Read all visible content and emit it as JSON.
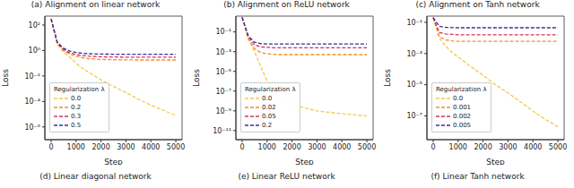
{
  "chart_data": [
    {
      "type": "line",
      "title": "(a) Alignment on linear network",
      "subtitle": "(d) Linear diagonal network",
      "x_label": "Step",
      "y_label": "Loss",
      "log": "y",
      "grid": false,
      "legend": "lower left",
      "legend_title": "Regularization λ",
      "x": [
        0,
        250,
        500,
        750,
        1000,
        1250,
        1500,
        2000,
        2500,
        3000,
        3500,
        4000,
        4500,
        5000
      ],
      "xlim": [
        -250,
        5250
      ],
      "xticks": [
        0,
        1000,
        2000,
        3000,
        4000,
        5000
      ],
      "ylim": [
        1e-07,
        500
      ],
      "yticks": [
        {
          "value": 1e-06,
          "label": "10⁻⁶"
        },
        {
          "value": 0.0001,
          "label": "10⁻⁴"
        },
        {
          "value": 0.01,
          "label": "10⁻²"
        },
        {
          "value": 1,
          "label": "10⁰"
        },
        {
          "value": 100,
          "label": "10²"
        }
      ],
      "series": [
        {
          "name": "0.0",
          "color": "#f2c94c",
          "line_style": "dashed",
          "values": [
            300,
            3,
            0.7,
            0.3,
            0.1,
            0.04,
            0.02,
            0.005,
            0.0015,
            0.0005,
            0.00015,
            5e-05,
            2e-05,
            8e-06
          ]
        },
        {
          "name": "0.2",
          "color": "#f28e2b",
          "line_style": "dashed",
          "values": [
            300,
            3.5,
            1,
            0.5,
            0.35,
            0.27,
            0.23,
            0.2,
            0.19,
            0.185,
            0.18,
            0.18,
            0.18,
            0.18
          ]
        },
        {
          "name": "0.3",
          "color": "#d1345b",
          "line_style": "dashed",
          "values": [
            300,
            4,
            1.2,
            0.65,
            0.48,
            0.4,
            0.36,
            0.32,
            0.31,
            0.3,
            0.3,
            0.3,
            0.3,
            0.3
          ]
        },
        {
          "name": "0.5",
          "color": "#3f2d9c",
          "line_style": "dashed",
          "values": [
            300,
            4.5,
            1.5,
            0.9,
            0.7,
            0.6,
            0.56,
            0.52,
            0.51,
            0.5,
            0.5,
            0.5,
            0.5,
            0.5
          ]
        }
      ]
    },
    {
      "type": "line",
      "title": "(b) Alignment on ReLU network",
      "subtitle": "(e) Linear ReLU network",
      "x_label": "Step",
      "y_label": "Loss",
      "log": "y",
      "grid": false,
      "legend": "lower left",
      "legend_title": "Regularization λ",
      "x": [
        0,
        250,
        500,
        750,
        1000,
        1250,
        1500,
        2000,
        2500,
        3000,
        3500,
        4000,
        4500,
        5000
      ],
      "xlim": [
        -250,
        5250
      ],
      "xticks": [
        0,
        1000,
        2000,
        3000,
        4000,
        5000
      ],
      "ylim": [
        1.2e-12,
        4
      ],
      "yticks": [
        {
          "value": 1e-11,
          "label": "10⁻¹¹"
        },
        {
          "value": 1e-09,
          "label": "10⁻⁹"
        },
        {
          "value": 1e-07,
          "label": "10⁻⁷"
        },
        {
          "value": 1e-05,
          "label": "10⁻⁵"
        },
        {
          "value": 0.001,
          "label": "10⁻³"
        },
        {
          "value": 0.1,
          "label": "10⁻¹"
        }
      ],
      "series": [
        {
          "name": "0.0",
          "color": "#f2c94c",
          "line_style": "dashed",
          "values": [
            3,
            0.02,
            0.001,
            3e-05,
            1e-06,
            4e-08,
            1.5e-08,
            5e-09,
            2e-09,
            1e-09,
            7e-10,
            5e-10,
            4e-10,
            3e-10
          ]
        },
        {
          "name": "0.02",
          "color": "#f28e2b",
          "line_style": "dashed",
          "values": [
            3,
            0.02,
            0.002,
            0.0008,
            0.0006,
            0.00055,
            0.0005,
            0.0005,
            0.0005,
            0.0005,
            0.0005,
            0.0005,
            0.0005,
            0.0005
          ]
        },
        {
          "name": "0.05",
          "color": "#d1345b",
          "line_style": "dashed",
          "values": [
            3,
            0.03,
            0.005,
            0.003,
            0.0027,
            0.0025,
            0.0025,
            0.0025,
            0.0025,
            0.0025,
            0.0025,
            0.0025,
            0.0025,
            0.0025
          ]
        },
        {
          "name": "0.2",
          "color": "#3f2d9c",
          "line_style": "dashed",
          "values": [
            3,
            0.04,
            0.009,
            0.0065,
            0.006,
            0.006,
            0.006,
            0.006,
            0.006,
            0.006,
            0.006,
            0.006,
            0.006,
            0.006
          ]
        }
      ]
    },
    {
      "type": "line",
      "title": "(c) Alignment on Tanh network",
      "subtitle": "(f) Linear Tanh network",
      "x_label": "Step",
      "y_label": "Loss",
      "log": "y",
      "grid": false,
      "legend": "lower left",
      "legend_title": "Regularization λ",
      "x": [
        0,
        250,
        500,
        750,
        1000,
        1250,
        1500,
        2000,
        2500,
        3000,
        3500,
        4000,
        4500,
        5000
      ],
      "xlim": [
        -250,
        5250
      ],
      "xticks": [
        0,
        1000,
        2000,
        3000,
        4000,
        5000
      ],
      "ylim": [
        3e-09,
        0.25
      ],
      "yticks": [
        {
          "value": 1e-07,
          "label": "10⁻⁷"
        },
        {
          "value": 1e-05,
          "label": "10⁻⁵"
        },
        {
          "value": 0.001,
          "label": "10⁻³"
        },
        {
          "value": 0.1,
          "label": "10⁻¹"
        }
      ],
      "series": [
        {
          "name": "0.0",
          "color": "#f2c94c",
          "line_style": "dashed",
          "values": [
            0.2,
            0.01,
            0.003,
            0.0012,
            0.0006,
            0.0003,
            0.00015,
            4e-05,
            1e-05,
            3e-06,
            8e-07,
            2e-07,
            6e-08,
            2e-08
          ]
        },
        {
          "name": "0.001",
          "color": "#f28e2b",
          "line_style": "dashed",
          "values": [
            0.2,
            0.012,
            0.0075,
            0.0065,
            0.006,
            0.006,
            0.006,
            0.006,
            0.006,
            0.006,
            0.006,
            0.006,
            0.006,
            0.006
          ]
        },
        {
          "name": "0.002",
          "color": "#d1345b",
          "line_style": "dashed",
          "values": [
            0.2,
            0.022,
            0.018,
            0.017,
            0.016,
            0.016,
            0.016,
            0.016,
            0.016,
            0.016,
            0.016,
            0.016,
            0.016,
            0.016
          ]
        },
        {
          "name": "0.005",
          "color": "#3f2d9c",
          "line_style": "dashed",
          "values": [
            0.2,
            0.055,
            0.048,
            0.046,
            0.045,
            0.045,
            0.045,
            0.045,
            0.045,
            0.045,
            0.045,
            0.045,
            0.045,
            0.045
          ]
        }
      ]
    }
  ]
}
